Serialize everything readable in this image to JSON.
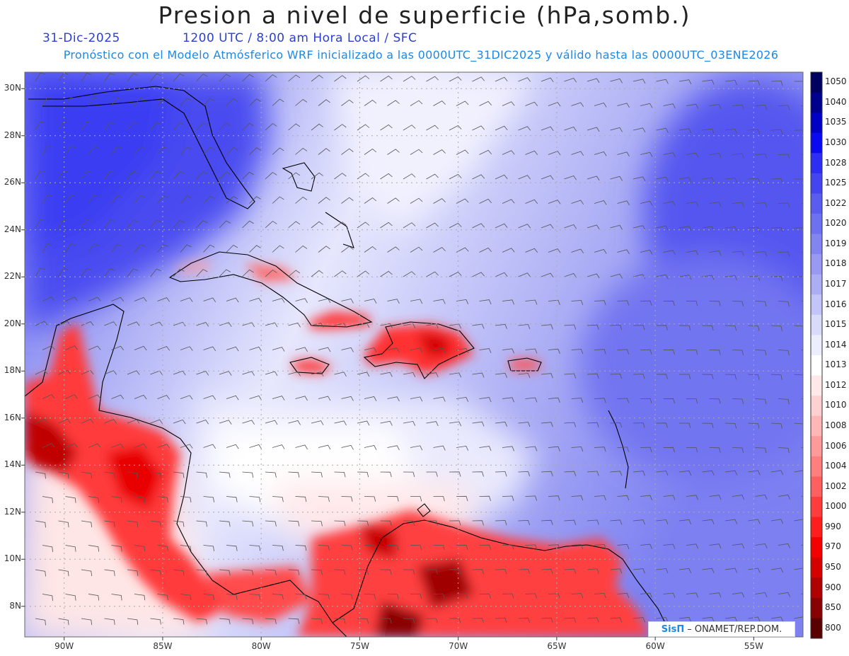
{
  "header": {
    "title": "Presion a nivel de superficie (hPa,somb.)",
    "date": "31-Dic-2025",
    "valid_time": "1200 UTC / 8:00 am Hora Local / SFC",
    "forecast_info": "Pronóstico con el Modelo Atmósferico WRF inicializado a las 0000UTC_31DIC2025 y válido hasta las  0000UTC_03ENE2026"
  },
  "axes": {
    "lat_labels": [
      "30N",
      "28N",
      "26N",
      "24N",
      "22N",
      "20N",
      "18N",
      "16N",
      "14N",
      "12N",
      "10N",
      "8N"
    ],
    "lat_values": [
      30,
      28,
      26,
      24,
      22,
      20,
      18,
      16,
      14,
      12,
      10,
      8
    ],
    "lon_labels": [
      "90W",
      "85W",
      "80W",
      "75W",
      "70W",
      "65W",
      "60W",
      "55W"
    ],
    "lon_values": [
      -90,
      -85,
      -80,
      -75,
      -70,
      -65,
      -60,
      -55
    ],
    "lat_range": [
      6.7,
      30.7
    ],
    "lon_range": [
      -92,
      -52.5
    ]
  },
  "colorbar": {
    "levels": [
      "1050",
      "1040",
      "1035",
      "1030",
      "1028",
      "1025",
      "1022",
      "1020",
      "1019",
      "1018",
      "1017",
      "1016",
      "1015",
      "1014",
      "1013",
      "1012",
      "1010",
      "1008",
      "1006",
      "1004",
      "1002",
      "1000",
      "990",
      "970",
      "950",
      "900",
      "850",
      "800"
    ],
    "colors": [
      "#000060",
      "#00008e",
      "#0000c4",
      "#0a0af2",
      "#2d2df3",
      "#4444f0",
      "#5a5cef",
      "#6d70ef",
      "#8284f0",
      "#9799f2",
      "#acaef5",
      "#c3c5f8",
      "#d9dbfb",
      "#ecedfd",
      "#ffffff",
      "#ffe8e8",
      "#ffd0d0",
      "#ffb6b6",
      "#ff9a9a",
      "#ff7e7e",
      "#ff5f5f",
      "#ff3c3c",
      "#ff1d1d",
      "#f40000",
      "#d60000",
      "#b00000",
      "#880000",
      "#5a0000"
    ]
  },
  "credit": {
    "logo": "SisΠ",
    "text": "– ONAMET/REP.DOM."
  }
}
